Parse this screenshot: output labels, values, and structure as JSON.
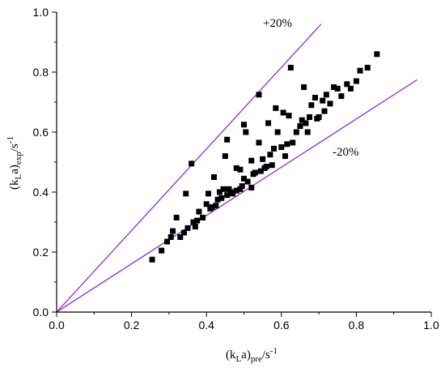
{
  "chart_data": {
    "type": "scatter",
    "title": "",
    "xlabel": {
      "base": "(k",
      "sub1": "L",
      "mid": "a)",
      "sub2": "pre",
      "unit": "/s",
      "sup": "-1"
    },
    "ylabel": {
      "base": "(k",
      "sub1": "L",
      "mid": "a)",
      "sub2": "exp",
      "unit": "/s",
      "sup": "-1"
    },
    "xlim": [
      0.0,
      1.0
    ],
    "ylim": [
      0.0,
      1.0
    ],
    "xticks": [
      "0.0",
      "0.2",
      "0.4",
      "0.6",
      "0.8",
      "1.0"
    ],
    "yticks": [
      "0.0",
      "0.2",
      "0.4",
      "0.6",
      "0.8",
      "1.0"
    ],
    "grid": false,
    "marker_color": "#000000",
    "line_color": "#8a2be2",
    "reference_lines": [
      {
        "label": "+20%",
        "slope": 1.36,
        "x_end": 0.706
      },
      {
        "label": "-20%",
        "slope": 0.805,
        "x_end": 0.962
      }
    ],
    "points": [
      [
        0.255,
        0.175
      ],
      [
        0.28,
        0.205
      ],
      [
        0.295,
        0.235
      ],
      [
        0.305,
        0.25
      ],
      [
        0.31,
        0.27
      ],
      [
        0.32,
        0.315
      ],
      [
        0.33,
        0.25
      ],
      [
        0.34,
        0.265
      ],
      [
        0.345,
        0.395
      ],
      [
        0.35,
        0.28
      ],
      [
        0.36,
        0.495
      ],
      [
        0.365,
        0.3
      ],
      [
        0.37,
        0.285
      ],
      [
        0.375,
        0.305
      ],
      [
        0.38,
        0.335
      ],
      [
        0.39,
        0.315
      ],
      [
        0.4,
        0.36
      ],
      [
        0.405,
        0.395
      ],
      [
        0.41,
        0.345
      ],
      [
        0.415,
        0.35
      ],
      [
        0.42,
        0.45
      ],
      [
        0.425,
        0.355
      ],
      [
        0.43,
        0.375
      ],
      [
        0.435,
        0.4
      ],
      [
        0.44,
        0.38
      ],
      [
        0.445,
        0.41
      ],
      [
        0.45,
        0.52
      ],
      [
        0.455,
        0.575
      ],
      [
        0.455,
        0.39
      ],
      [
        0.46,
        0.41
      ],
      [
        0.465,
        0.4
      ],
      [
        0.47,
        0.395
      ],
      [
        0.48,
        0.405
      ],
      [
        0.48,
        0.48
      ],
      [
        0.49,
        0.41
      ],
      [
        0.49,
        0.475
      ],
      [
        0.495,
        0.42
      ],
      [
        0.5,
        0.625
      ],
      [
        0.5,
        0.445
      ],
      [
        0.505,
        0.6
      ],
      [
        0.51,
        0.435
      ],
      [
        0.52,
        0.415
      ],
      [
        0.52,
        0.505
      ],
      [
        0.525,
        0.46
      ],
      [
        0.53,
        0.465
      ],
      [
        0.54,
        0.725
      ],
      [
        0.54,
        0.565
      ],
      [
        0.545,
        0.47
      ],
      [
        0.55,
        0.51
      ],
      [
        0.555,
        0.48
      ],
      [
        0.56,
        0.485
      ],
      [
        0.565,
        0.63
      ],
      [
        0.57,
        0.525
      ],
      [
        0.575,
        0.49
      ],
      [
        0.58,
        0.545
      ],
      [
        0.585,
        0.68
      ],
      [
        0.59,
        0.6
      ],
      [
        0.6,
        0.55
      ],
      [
        0.605,
        0.665
      ],
      [
        0.61,
        0.52
      ],
      [
        0.615,
        0.56
      ],
      [
        0.62,
        0.655
      ],
      [
        0.625,
        0.815
      ],
      [
        0.63,
        0.565
      ],
      [
        0.64,
        0.6
      ],
      [
        0.65,
        0.62
      ],
      [
        0.655,
        0.64
      ],
      [
        0.66,
        0.75
      ],
      [
        0.665,
        0.63
      ],
      [
        0.67,
        0.6
      ],
      [
        0.675,
        0.65
      ],
      [
        0.68,
        0.69
      ],
      [
        0.69,
        0.715
      ],
      [
        0.695,
        0.645
      ],
      [
        0.7,
        0.65
      ],
      [
        0.71,
        0.705
      ],
      [
        0.715,
        0.67
      ],
      [
        0.72,
        0.725
      ],
      [
        0.73,
        0.695
      ],
      [
        0.74,
        0.75
      ],
      [
        0.75,
        0.745
      ],
      [
        0.76,
        0.72
      ],
      [
        0.775,
        0.76
      ],
      [
        0.785,
        0.745
      ],
      [
        0.8,
        0.77
      ],
      [
        0.81,
        0.805
      ],
      [
        0.83,
        0.815
      ],
      [
        0.855,
        0.86
      ]
    ]
  }
}
